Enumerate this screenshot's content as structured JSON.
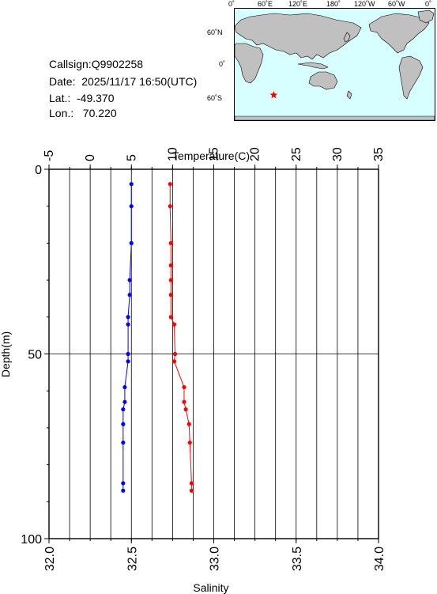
{
  "station": {
    "callsign": "Callsign:Q9902258",
    "date": "Date:  2025/11/17 16:50(UTC)",
    "lat": "Lat.:  -49.370",
    "lon": "Lon.:   70.220"
  },
  "map": {
    "lon_labels": [
      "0˚",
      "60˚E",
      "120˚E",
      "180˚",
      "120˚W",
      "60˚W",
      "0˚"
    ],
    "lat_labels": [
      "60˚N",
      "0˚",
      "60˚S"
    ],
    "ocean_color": "#d8ffff",
    "land_color": "#c0c0c0",
    "marker_color": "#ff0000",
    "marker_icon": "star-icon",
    "marker_lon": 70.22,
    "marker_lat": -49.37
  },
  "chart_data": {
    "type": "scatter",
    "xlabel_top": "Temperature(C)",
    "xlabel_bottom": "Salinity",
    "ylabel": "Depth(m)",
    "temperature_axis": {
      "range": [
        -5,
        35
      ],
      "ticks": [
        "-5",
        "0",
        "5",
        "10",
        "15",
        "20",
        "25",
        "30",
        "35"
      ]
    },
    "salinity_axis": {
      "range": [
        32.0,
        34.0
      ],
      "ticks": [
        "32.0",
        "32.5",
        "33.0",
        "33.5",
        "34.0"
      ]
    },
    "depth_axis": {
      "range": [
        0,
        100
      ],
      "ticks": [
        "0",
        "50",
        "100"
      ],
      "inverted": true
    },
    "grid": true,
    "series": [
      {
        "key": "temperature",
        "color": "#ff0000",
        "points": [
          {
            "depth": 4,
            "value": 9.7
          },
          {
            "depth": 10,
            "value": 9.7
          },
          {
            "depth": 20,
            "value": 9.8
          },
          {
            "depth": 26,
            "value": 9.8
          },
          {
            "depth": 30,
            "value": 9.8
          },
          {
            "depth": 34,
            "value": 9.8
          },
          {
            "depth": 40,
            "value": 9.8
          },
          {
            "depth": 42,
            "value": 10.2
          },
          {
            "depth": 50,
            "value": 10.3
          },
          {
            "depth": 52,
            "value": 10.2
          },
          {
            "depth": 59,
            "value": 11.4
          },
          {
            "depth": 63,
            "value": 11.4
          },
          {
            "depth": 65,
            "value": 11.6
          },
          {
            "depth": 69,
            "value": 12.0
          },
          {
            "depth": 74,
            "value": 12.1
          },
          {
            "depth": 85,
            "value": 12.3
          },
          {
            "depth": 87,
            "value": 12.3
          }
        ]
      },
      {
        "key": "salinity",
        "color": "#0000ff",
        "points": [
          {
            "depth": 4,
            "value": 32.5
          },
          {
            "depth": 10,
            "value": 32.5
          },
          {
            "depth": 20,
            "value": 32.5
          },
          {
            "depth": 30,
            "value": 32.49
          },
          {
            "depth": 34,
            "value": 32.49
          },
          {
            "depth": 40,
            "value": 32.48
          },
          {
            "depth": 42,
            "value": 32.48
          },
          {
            "depth": 50,
            "value": 32.48
          },
          {
            "depth": 52,
            "value": 32.48
          },
          {
            "depth": 59,
            "value": 32.46
          },
          {
            "depth": 63,
            "value": 32.46
          },
          {
            "depth": 65,
            "value": 32.45
          },
          {
            "depth": 69,
            "value": 32.45
          },
          {
            "depth": 74,
            "value": 32.45
          },
          {
            "depth": 85,
            "value": 32.45
          },
          {
            "depth": 87,
            "value": 32.45
          }
        ]
      }
    ]
  }
}
